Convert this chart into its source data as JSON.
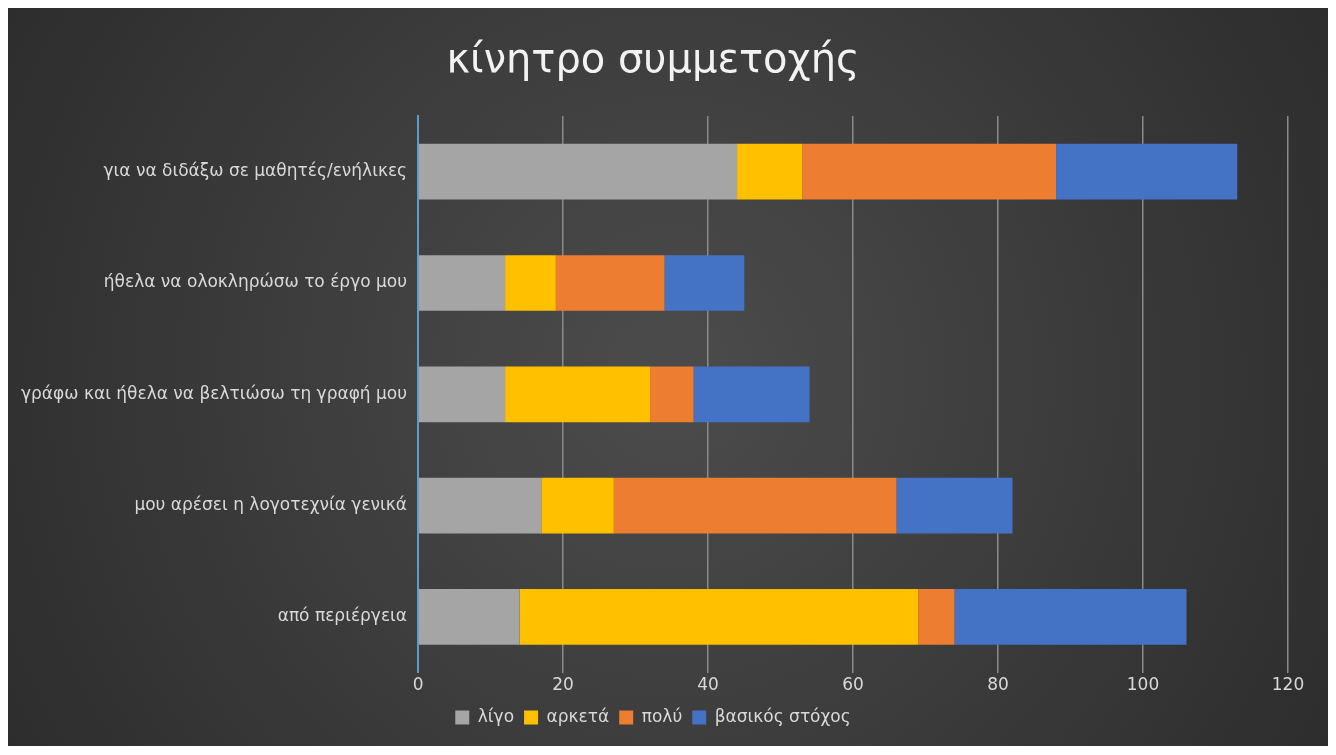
{
  "chart_data": {
    "type": "bar",
    "title": "κίνητρο συμμετοχής",
    "orientation": "horizontal",
    "stacked": true,
    "categories": [
      "για να διδάξω σε μαθητές/ενήλικες",
      "ήθελα να ολοκληρώσω το έργο μου",
      "γράφω και ήθελα να βελτιώσω τη γραφή μου",
      "μου αρέσει η λογοτεχνία γενικά",
      "από περιέργεια"
    ],
    "series": [
      {
        "name": "λίγο",
        "color": "#a5a5a5",
        "values": [
          44,
          12,
          12,
          17,
          14
        ]
      },
      {
        "name": "αρκετά",
        "color": "#ffc000",
        "values": [
          9,
          7,
          20,
          10,
          55
        ]
      },
      {
        "name": "πολύ",
        "color": "#ed7d31",
        "values": [
          35,
          15,
          6,
          39,
          5
        ]
      },
      {
        "name": "βασικός στόχος",
        "color": "#4472c4",
        "values": [
          25,
          11,
          16,
          16,
          32
        ]
      }
    ],
    "xlim": [
      0,
      120
    ],
    "xticks": [
      0,
      20,
      40,
      60,
      80,
      100,
      120
    ],
    "grid": "x",
    "legend": "bottom"
  }
}
